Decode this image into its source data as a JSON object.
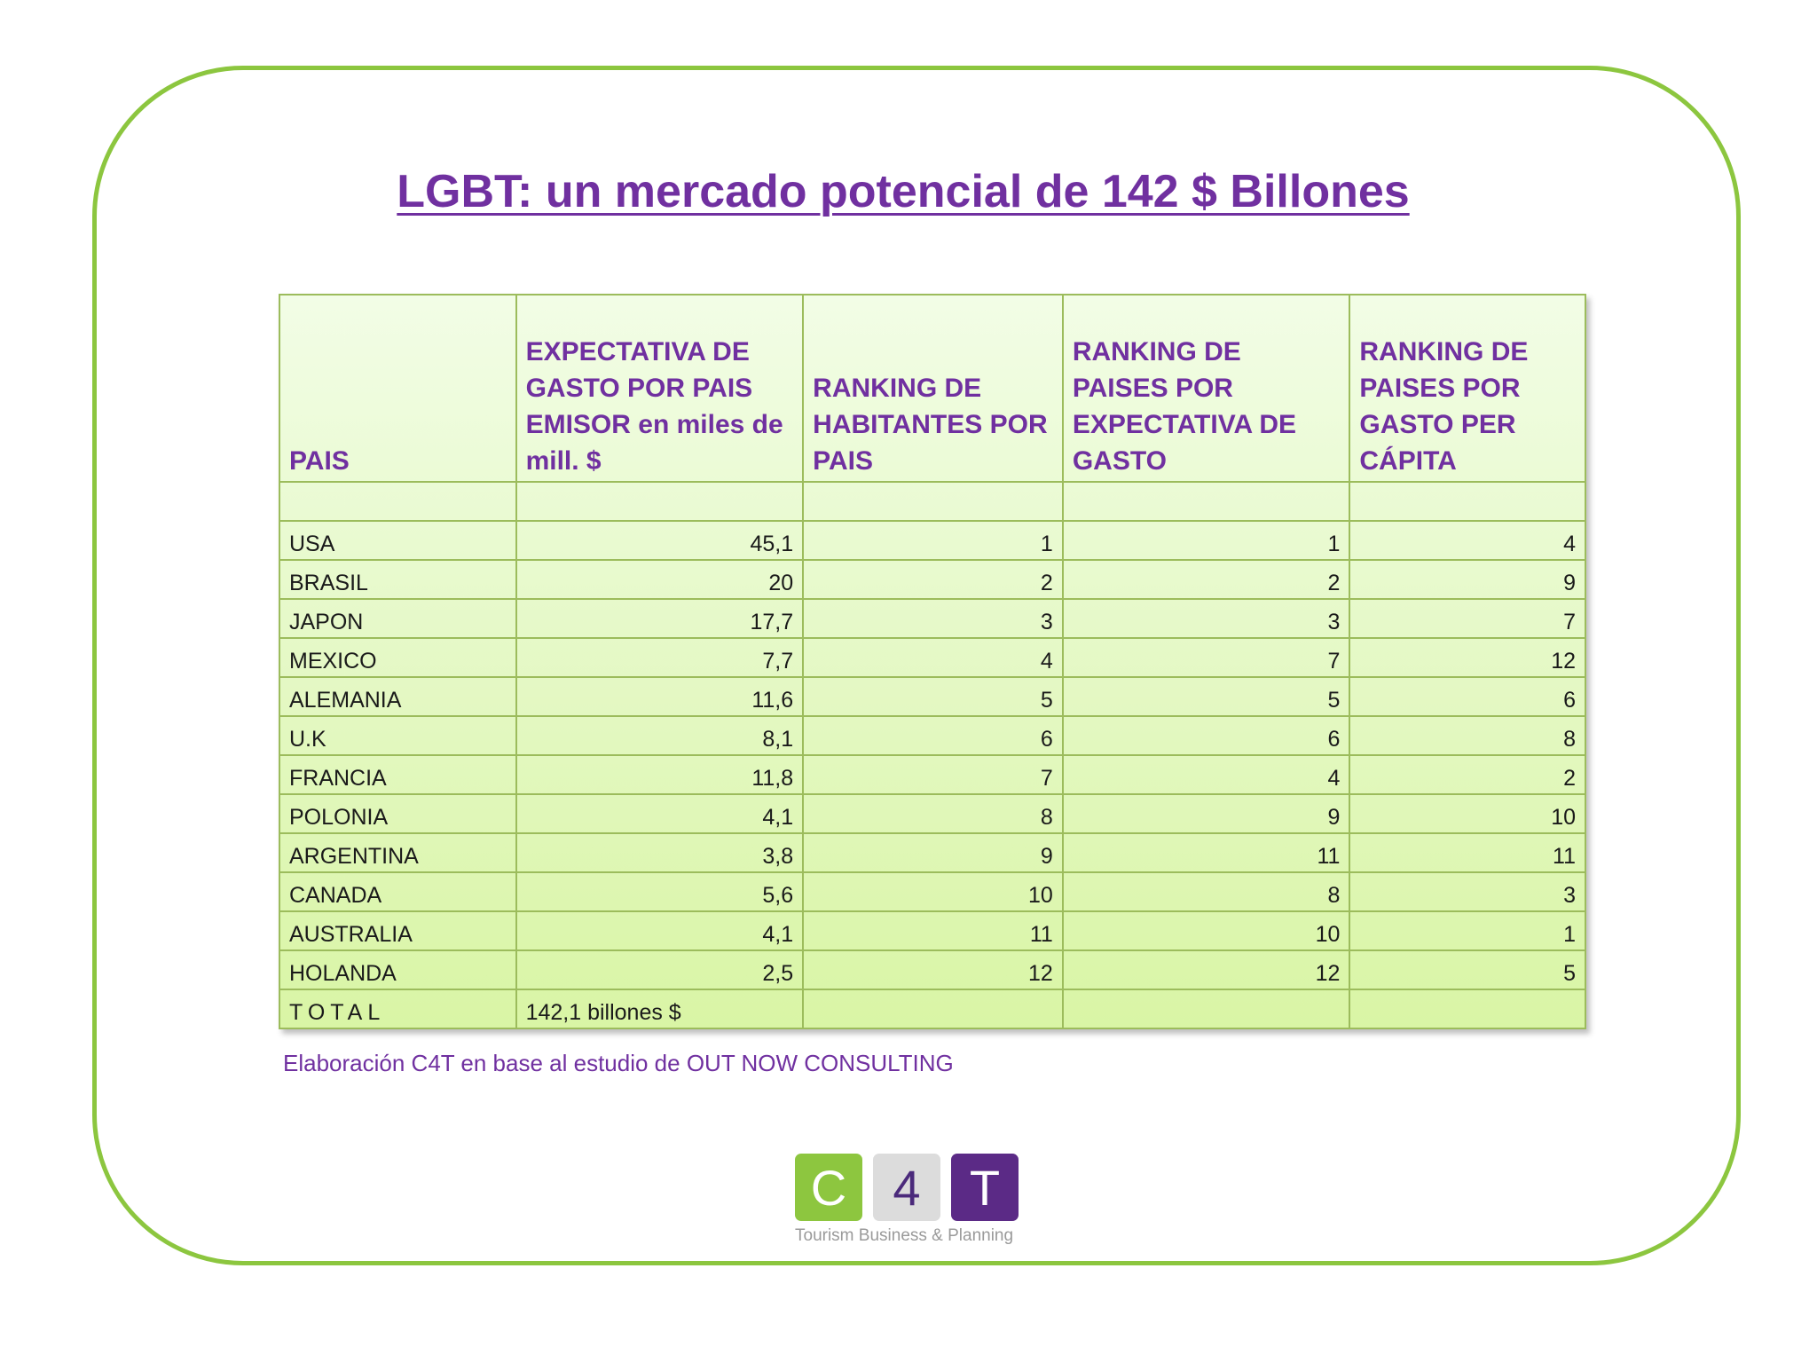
{
  "title": "LGBT: un mercado potencial de 142 $ Billones",
  "table": {
    "headers": [
      "PAIS",
      "EXPECTATIVA DE GASTO POR  PAIS EMISOR  en miles de mill. $",
      "RANKING DE HABITANTES POR PAIS",
      "RANKING DE PAISES POR EXPECTATIVA DE GASTO",
      "RANKING DE PAISES POR GASTO PER CÁPITA"
    ],
    "rows": [
      [
        "USA",
        "45,1",
        "1",
        "1",
        "4"
      ],
      [
        "BRASIL",
        "20",
        "2",
        "2",
        "9"
      ],
      [
        "JAPON",
        "17,7",
        "3",
        "3",
        "7"
      ],
      [
        "MEXICO",
        "7,7",
        "4",
        "7",
        "12"
      ],
      [
        "ALEMANIA",
        "11,6",
        "5",
        "5",
        "6"
      ],
      [
        "U.K",
        "8,1",
        "6",
        "6",
        "8"
      ],
      [
        "FRANCIA",
        "11,8",
        "7",
        "4",
        "2"
      ],
      [
        "POLONIA",
        "4,1",
        "8",
        "9",
        "10"
      ],
      [
        "ARGENTINA",
        "3,8",
        "9",
        "11",
        "11"
      ],
      [
        "CANADA",
        "5,6",
        "10",
        "8",
        "3"
      ],
      [
        "AUSTRALIA",
        "4,1",
        "11",
        "10",
        "1"
      ],
      [
        "HOLANDA",
        "2,5",
        "12",
        "12",
        "5"
      ]
    ],
    "total_label": "TOTAL",
    "total_value": "142,1 billones $"
  },
  "source_note": "Elaboración C4T en base al estudio de OUT NOW CONSULTING",
  "logo": {
    "tiles": [
      "C",
      "4",
      "T"
    ],
    "tagline": "Tourism Business & Planning",
    "colors": {
      "c": "#8dc63f",
      "four": "#dcdcdc",
      "t": "#5b2a86"
    }
  },
  "colors": {
    "accent": "#7030a0",
    "frame": "#8cc63f",
    "table_border": "#9cbc5c"
  }
}
